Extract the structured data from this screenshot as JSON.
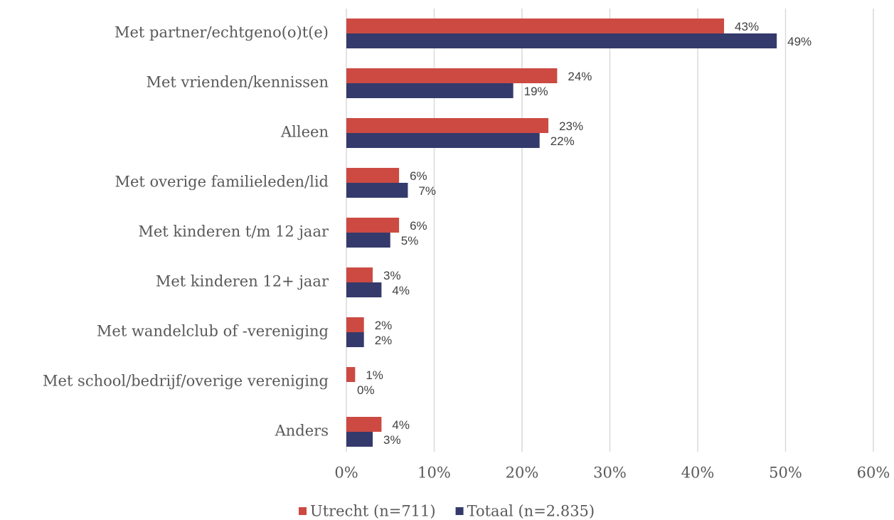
{
  "chart_data": {
    "type": "bar",
    "orientation": "horizontal",
    "categories": [
      "Met partner/echtgeno(o)t(e)",
      "Met vrienden/kennissen",
      "Alleen",
      "Met overige familieleden/lid",
      "Met kinderen t/m 12 jaar",
      "Met kinderen 12+ jaar",
      "Met wandelclub of -vereniging",
      "Met school/bedrijf/overige vereniging",
      "Anders"
    ],
    "series": [
      {
        "name": "Utrecht (n=711)",
        "color": "#cc4a42",
        "values": [
          43,
          24,
          23,
          6,
          6,
          3,
          2,
          1,
          4
        ],
        "value_labels": [
          "43%",
          "24%",
          "23%",
          "6%",
          "6%",
          "3%",
          "2%",
          "1%",
          "4%"
        ]
      },
      {
        "name": "Totaal (n=2.835)",
        "color": "#343a6b",
        "values": [
          49,
          19,
          22,
          7,
          5,
          4,
          2,
          0,
          3
        ],
        "value_labels": [
          "49%",
          "19%",
          "22%",
          "7%",
          "5%",
          "4%",
          "2%",
          "0%",
          "3%"
        ]
      }
    ],
    "xlim": [
      0,
      60
    ],
    "xticks": [
      {
        "value": 0,
        "label": "0%"
      },
      {
        "value": 10,
        "label": "10%"
      },
      {
        "value": 20,
        "label": "20%"
      },
      {
        "value": 30,
        "label": "30%"
      },
      {
        "value": 40,
        "label": "40%"
      },
      {
        "value": 50,
        "label": "50%"
      },
      {
        "value": 60,
        "label": "60%"
      }
    ],
    "grid": true,
    "legend": "bottom"
  }
}
